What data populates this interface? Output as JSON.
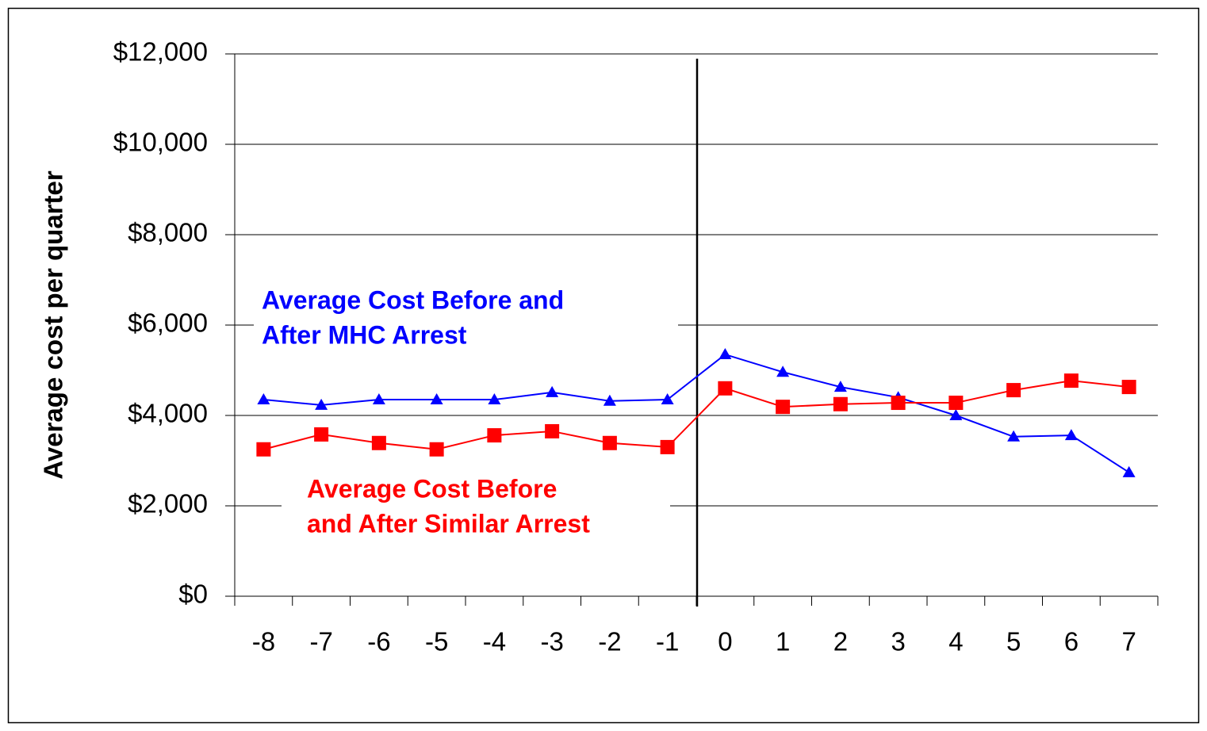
{
  "chart_data": {
    "type": "line",
    "y_axis_label": "Average cost per quarter",
    "categories": [
      "-8",
      "-7",
      "-6",
      "-5",
      "-4",
      "-3",
      "-2",
      "-1",
      "0",
      "1",
      "2",
      "3",
      "4",
      "5",
      "6",
      "7"
    ],
    "series": [
      {
        "color": "#0000ff",
        "marker": "triangle",
        "values": [
          4350,
          4230,
          4350,
          4350,
          4350,
          4510,
          4320,
          4350,
          5350,
          4960,
          4630,
          4400,
          4000,
          3530,
          3560,
          2740
        ]
      },
      {
        "color": "#ff0000",
        "marker": "square",
        "values": [
          3250,
          3580,
          3390,
          3250,
          3560,
          3650,
          3390,
          3300,
          4600,
          4190,
          4250,
          4280,
          4280,
          4560,
          4770,
          4630
        ]
      }
    ],
    "annotations": [
      {
        "color": "#0000ff",
        "lines": [
          "Average Cost Before and",
          "After MHC Arrest"
        ]
      },
      {
        "color": "#ff0000",
        "lines": [
          "Average Cost Before",
          "and After Similar Arrest"
        ]
      }
    ],
    "ylim": [
      0,
      12000
    ],
    "yticks": [
      {
        "value": 0,
        "label": "$0"
      },
      {
        "value": 2000,
        "label": "$2,000"
      },
      {
        "value": 4000,
        "label": "$4,000"
      },
      {
        "value": 6000,
        "label": "$6,000"
      },
      {
        "value": 8000,
        "label": "$8,000"
      },
      {
        "value": 10000,
        "label": "$10,000"
      },
      {
        "value": 12000,
        "label": "$12,000"
      }
    ],
    "grid": true
  }
}
